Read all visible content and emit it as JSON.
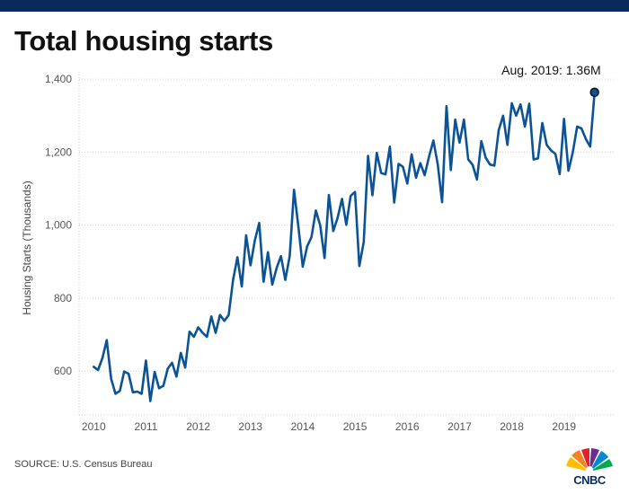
{
  "header": {
    "title": "Total housing starts"
  },
  "footer": {
    "source": "SOURCE: U.S. Census Bureau",
    "logo_text": "CNBC"
  },
  "colors": {
    "line": "#0b5394",
    "top_bar": "#0a2a5c",
    "grid": "#cfcfcf"
  },
  "chart_data": {
    "type": "line",
    "title": "Total housing starts",
    "xlabel": "",
    "ylabel": "Housing Starts (Thousands)",
    "ylim": [
      480,
      1420
    ],
    "xlim": [
      2009.72,
      2019.95
    ],
    "y_ticks": [
      600,
      800,
      1000,
      1200,
      1400
    ],
    "y_tick_labels": [
      "600",
      "800",
      "1,000",
      "1,200",
      "1,400"
    ],
    "x_ticks": [
      2010,
      2011,
      2012,
      2013,
      2014,
      2015,
      2016,
      2017,
      2018,
      2019
    ],
    "x_tick_labels": [
      "2010",
      "2011",
      "2012",
      "2013",
      "2014",
      "2015",
      "2016",
      "2017",
      "2018",
      "2019"
    ],
    "grid": "horizontal dotted",
    "annotation": {
      "text": "Aug. 2019: 1.36M",
      "x": 2019.58,
      "y": 1364
    },
    "series": [
      {
        "x_start": 2010.0,
        "x_step_months": 1,
        "values": [
          612,
          603,
          636,
          685,
          579,
          538,
          546,
          599,
          593,
          542,
          544,
          538,
          629,
          518,
          598,
          553,
          560,
          607,
          623,
          585,
          650,
          610,
          708,
          694,
          720,
          705,
          694,
          750,
          705,
          754,
          738,
          754,
          850,
          912,
          832,
          972,
          890,
          958,
          1006,
          845,
          926,
          837,
          883,
          915,
          850,
          915,
          1097,
          995,
          886,
          942,
          967,
          1040,
          1000,
          910,
          1083,
          984,
          1020,
          1072,
          1001,
          1080,
          1091,
          888,
          954,
          1190,
          1082,
          1198,
          1143,
          1139,
          1215,
          1062,
          1168,
          1160,
          1114,
          1194,
          1130,
          1170,
          1137,
          1188,
          1232,
          1166,
          1063,
          1326,
          1151,
          1289,
          1226,
          1289,
          1180,
          1165,
          1125,
          1230,
          1185,
          1166,
          1163,
          1260,
          1300,
          1220,
          1334,
          1300,
          1331,
          1270,
          1333,
          1180,
          1183,
          1280,
          1220,
          1205,
          1195,
          1140,
          1291,
          1149,
          1199,
          1270,
          1265,
          1236,
          1215,
          1364
        ]
      }
    ]
  }
}
